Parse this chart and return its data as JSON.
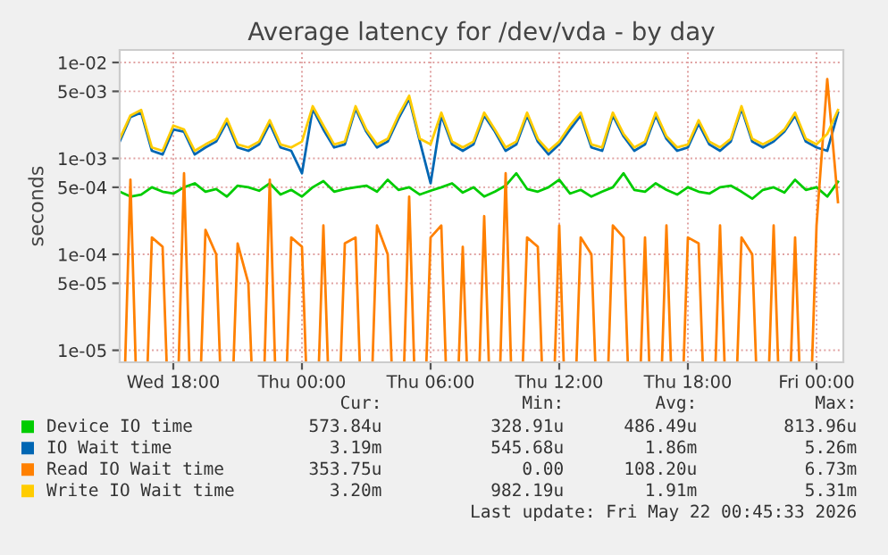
{
  "chart_data": {
    "type": "line",
    "title": "Average latency for /dev/vda - by day",
    "ylabel": "seconds",
    "x": [
      "2026-05-20T15:30",
      "2026-05-20T16:00",
      "2026-05-20T16:30",
      "2026-05-20T17:00",
      "2026-05-20T17:30",
      "2026-05-20T18:00",
      "2026-05-20T18:30",
      "2026-05-20T19:00",
      "2026-05-20T19:30",
      "2026-05-20T20:00",
      "2026-05-20T20:30",
      "2026-05-20T21:00",
      "2026-05-20T21:30",
      "2026-05-20T22:00",
      "2026-05-20T22:30",
      "2026-05-20T23:00",
      "2026-05-20T23:30",
      "2026-05-21T00:00",
      "2026-05-21T00:30",
      "2026-05-21T01:00",
      "2026-05-21T01:30",
      "2026-05-21T02:00",
      "2026-05-21T02:30",
      "2026-05-21T03:00",
      "2026-05-21T03:30",
      "2026-05-21T04:00",
      "2026-05-21T04:30",
      "2026-05-21T05:00",
      "2026-05-21T05:30",
      "2026-05-21T06:00",
      "2026-05-21T06:30",
      "2026-05-21T07:00",
      "2026-05-21T07:30",
      "2026-05-21T08:00",
      "2026-05-21T08:30",
      "2026-05-21T09:00",
      "2026-05-21T09:30",
      "2026-05-21T10:00",
      "2026-05-21T10:30",
      "2026-05-21T11:00",
      "2026-05-21T11:30",
      "2026-05-21T12:00",
      "2026-05-21T12:30",
      "2026-05-21T13:00",
      "2026-05-21T13:30",
      "2026-05-21T14:00",
      "2026-05-21T14:30",
      "2026-05-21T15:00",
      "2026-05-21T15:30",
      "2026-05-21T16:00",
      "2026-05-21T16:30",
      "2026-05-21T17:00",
      "2026-05-21T17:30",
      "2026-05-21T18:00",
      "2026-05-21T18:30",
      "2026-05-21T19:00",
      "2026-05-21T19:30",
      "2026-05-21T20:00",
      "2026-05-21T20:30",
      "2026-05-21T21:00",
      "2026-05-21T21:30",
      "2026-05-21T22:00",
      "2026-05-21T22:30",
      "2026-05-21T23:00",
      "2026-05-21T23:30",
      "2026-05-22T00:00",
      "2026-05-22T00:30",
      "2026-05-22T01:00"
    ],
    "series": [
      {
        "name": "Device IO time",
        "color": "#00cc00",
        "values": [
          0.00045,
          0.0004,
          0.00042,
          0.0005,
          0.00045,
          0.00043,
          0.0005,
          0.00055,
          0.00045,
          0.00048,
          0.0004,
          0.00052,
          0.0005,
          0.00046,
          0.00055,
          0.00042,
          0.00047,
          0.0004,
          0.0005,
          0.00058,
          0.00045,
          0.00048,
          0.0005,
          0.00052,
          0.00045,
          0.0006,
          0.00047,
          0.0005,
          0.00042,
          0.00046,
          0.0005,
          0.00055,
          0.00044,
          0.0005,
          0.0004,
          0.00045,
          0.00052,
          0.0007,
          0.00048,
          0.00045,
          0.0005,
          0.0006,
          0.00043,
          0.00047,
          0.0004,
          0.00045,
          0.0005,
          0.0007,
          0.00047,
          0.00045,
          0.00055,
          0.00047,
          0.00042,
          0.0005,
          0.00045,
          0.00043,
          0.0005,
          0.00052,
          0.00045,
          0.00038,
          0.00047,
          0.0005,
          0.00044,
          0.0006,
          0.00047,
          0.0005,
          0.0004,
          0.00057
        ]
      },
      {
        "name": "IO Wait time",
        "color": "#0066b3",
        "values": [
          0.0015,
          0.0027,
          0.003,
          0.0012,
          0.0011,
          0.002,
          0.0019,
          0.0011,
          0.0013,
          0.0015,
          0.0024,
          0.0013,
          0.0012,
          0.0014,
          0.0023,
          0.0013,
          0.0012,
          0.0007,
          0.0033,
          0.002,
          0.0013,
          0.0014,
          0.0033,
          0.0019,
          0.0013,
          0.0015,
          0.0026,
          0.0042,
          0.0015,
          0.00055,
          0.0028,
          0.0014,
          0.0012,
          0.0014,
          0.0028,
          0.0019,
          0.0012,
          0.0014,
          0.0028,
          0.0015,
          0.0011,
          0.0014,
          0.002,
          0.0028,
          0.0013,
          0.0012,
          0.0028,
          0.0017,
          0.0012,
          0.0014,
          0.0028,
          0.0016,
          0.0012,
          0.0013,
          0.0023,
          0.0014,
          0.0012,
          0.0015,
          0.0033,
          0.0015,
          0.0013,
          0.0015,
          0.0019,
          0.0028,
          0.0015,
          0.0013,
          0.0012,
          0.003
        ]
      },
      {
        "name": "Read IO Wait time",
        "color": "#ff8000",
        "values": [
          null,
          0.0006,
          null,
          0.00015,
          0.00012,
          null,
          0.0007,
          null,
          0.00018,
          0.0001,
          null,
          0.00013,
          5e-05,
          null,
          0.0006,
          null,
          0.00015,
          0.00012,
          null,
          0.0002,
          null,
          0.00013,
          0.00015,
          null,
          0.0002,
          0.0001,
          null,
          0.0004,
          null,
          0.00015,
          0.0002,
          null,
          0.00012,
          null,
          0.00025,
          null,
          0.0007,
          null,
          0.00015,
          0.00012,
          null,
          0.0002,
          null,
          0.00015,
          0.0001,
          null,
          0.0002,
          0.00015,
          null,
          0.00015,
          null,
          0.0002,
          null,
          0.00015,
          0.00013,
          null,
          0.0002,
          null,
          0.00015,
          0.0001,
          null,
          0.0002,
          null,
          0.00015,
          null,
          0.0002,
          0.0067,
          0.00035
        ]
      },
      {
        "name": "Write IO Wait time",
        "color": "#ffcc00",
        "values": [
          0.0016,
          0.0028,
          0.0032,
          0.0013,
          0.0012,
          0.0022,
          0.002,
          0.0012,
          0.0014,
          0.0016,
          0.0026,
          0.0014,
          0.0013,
          0.0015,
          0.0025,
          0.0014,
          0.0013,
          0.0015,
          0.0035,
          0.0022,
          0.0014,
          0.0015,
          0.0035,
          0.002,
          0.0014,
          0.0016,
          0.0028,
          0.0045,
          0.0016,
          0.0014,
          0.003,
          0.0015,
          0.0013,
          0.0015,
          0.003,
          0.002,
          0.0013,
          0.0015,
          0.003,
          0.0016,
          0.0012,
          0.0015,
          0.0022,
          0.003,
          0.0014,
          0.0013,
          0.003,
          0.0018,
          0.0013,
          0.0015,
          0.003,
          0.0017,
          0.0013,
          0.0014,
          0.0025,
          0.0015,
          0.0013,
          0.0016,
          0.0035,
          0.0016,
          0.0014,
          0.0016,
          0.002,
          0.003,
          0.0016,
          0.0014,
          0.0018,
          0.0032
        ]
      }
    ],
    "log": "y",
    "xlim": [
      "2026-05-20T15:30",
      "2026-05-22T01:15"
    ],
    "ylim": [
      7.5e-06,
      0.0135
    ],
    "xticks": [
      {
        "value": "2026-05-20T18:00",
        "label": "Wed 18:00"
      },
      {
        "value": "2026-05-21T00:00",
        "label": "Thu 00:00"
      },
      {
        "value": "2026-05-21T06:00",
        "label": "Thu 06:00"
      },
      {
        "value": "2026-05-21T12:00",
        "label": "Thu 12:00"
      },
      {
        "value": "2026-05-21T18:00",
        "label": "Thu 18:00"
      },
      {
        "value": "2026-05-22T00:00",
        "label": "Fri 00:00"
      }
    ],
    "yticks": [
      {
        "value": 0.01,
        "label": "1e-02"
      },
      {
        "value": 0.005,
        "label": "5e-03"
      },
      {
        "value": 0.001,
        "label": "1e-03"
      },
      {
        "value": 0.0005,
        "label": "5e-04"
      },
      {
        "value": 0.0001,
        "label": "1e-04"
      },
      {
        "value": 5e-05,
        "label": "5e-05"
      },
      {
        "value": 1e-05,
        "label": "1e-05"
      }
    ],
    "grid": true,
    "legend": "bottom",
    "line_style": "solid",
    "marker": "none",
    "annotations": [
      "Cur:",
      "Min:",
      "Avg:",
      "Max:",
      "573.84u",
      "328.91u",
      "486.49u",
      "813.96u",
      "3.19m",
      "545.68u",
      "1.86m",
      "5.26m",
      "353.75u",
      "0.00",
      "108.20u",
      "6.73m",
      "3.20m",
      "982.19u",
      "1.91m",
      "5.31m",
      "Last update: Fri May 22 00:45:33 2026"
    ]
  }
}
